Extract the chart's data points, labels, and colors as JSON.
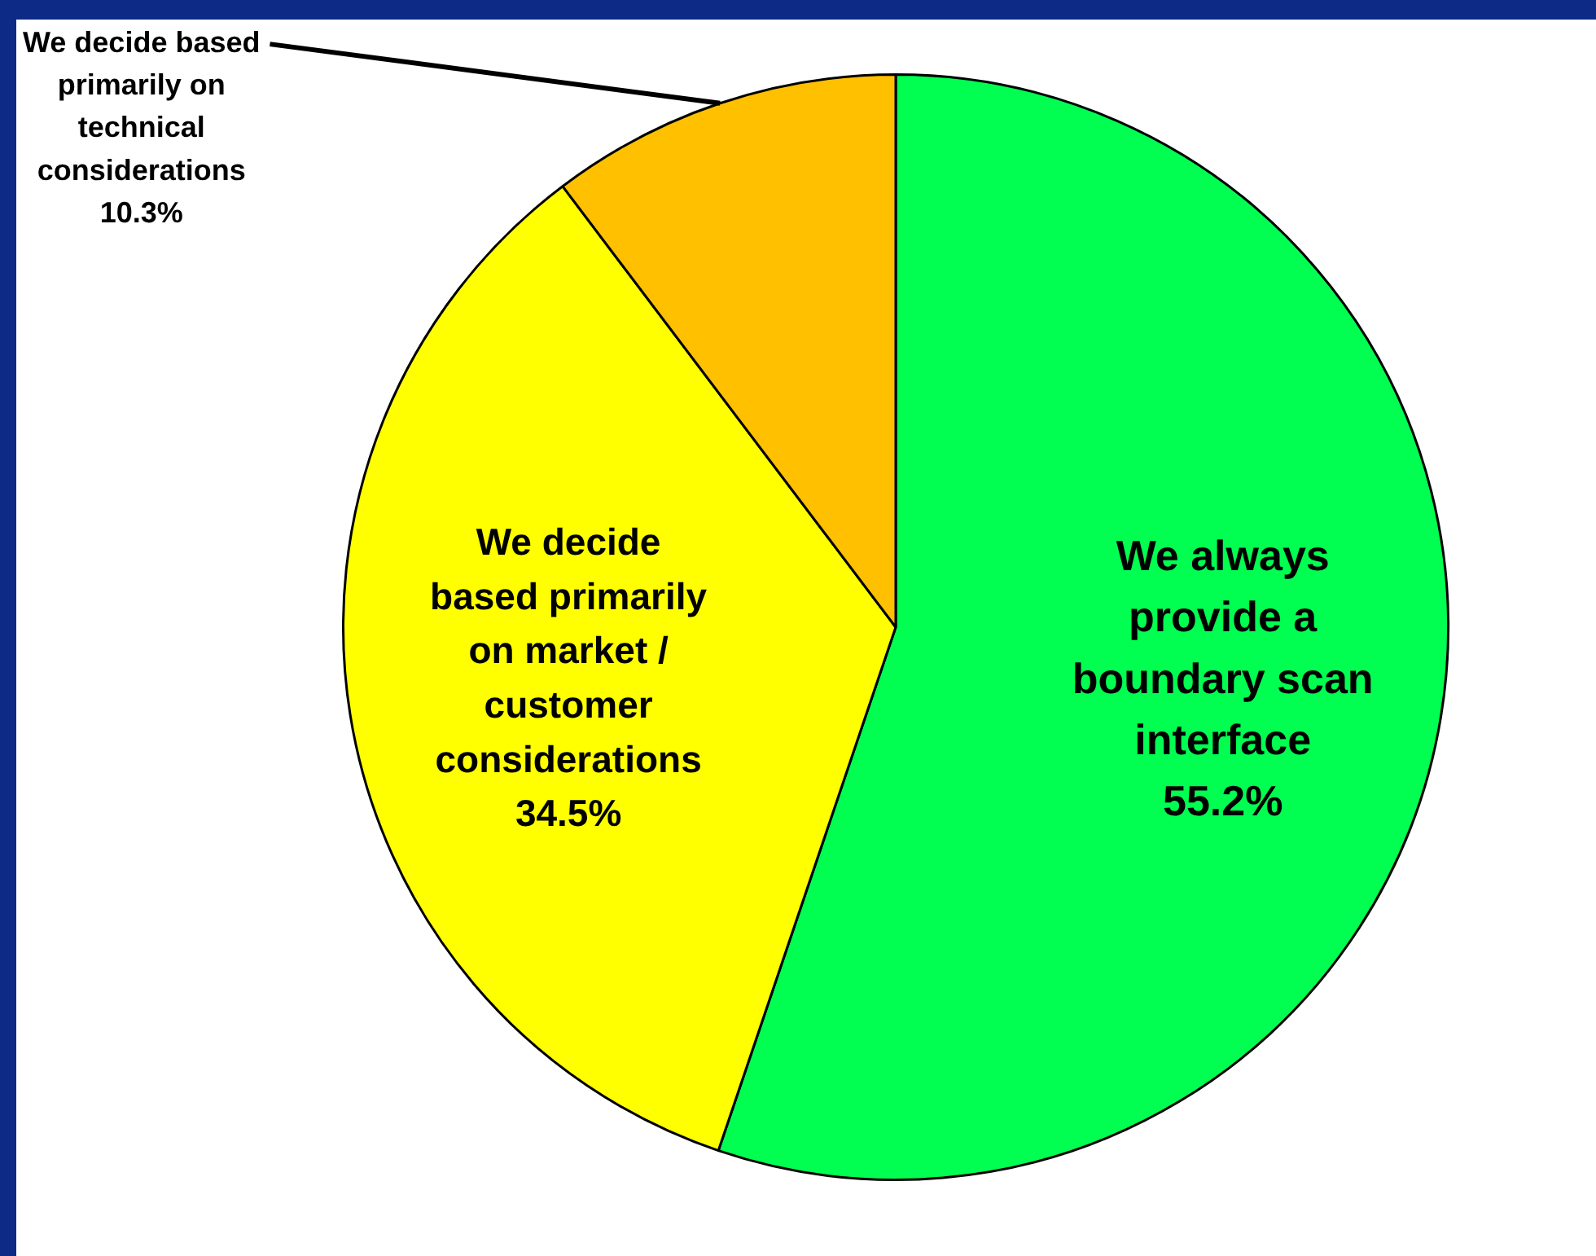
{
  "chart_data": {
    "type": "pie",
    "categories": [
      "We always provide a boundary scan interface",
      "We decide based primarily on market / customer considerations",
      "We decide based primarily on technical considerations"
    ],
    "values": [
      55.2,
      34.5,
      10.3
    ],
    "colors": [
      "#00ff50",
      "#ffff00",
      "#ffc000"
    ],
    "value_labels": [
      "55.2%",
      "34.5%",
      "10.3%"
    ]
  }
}
